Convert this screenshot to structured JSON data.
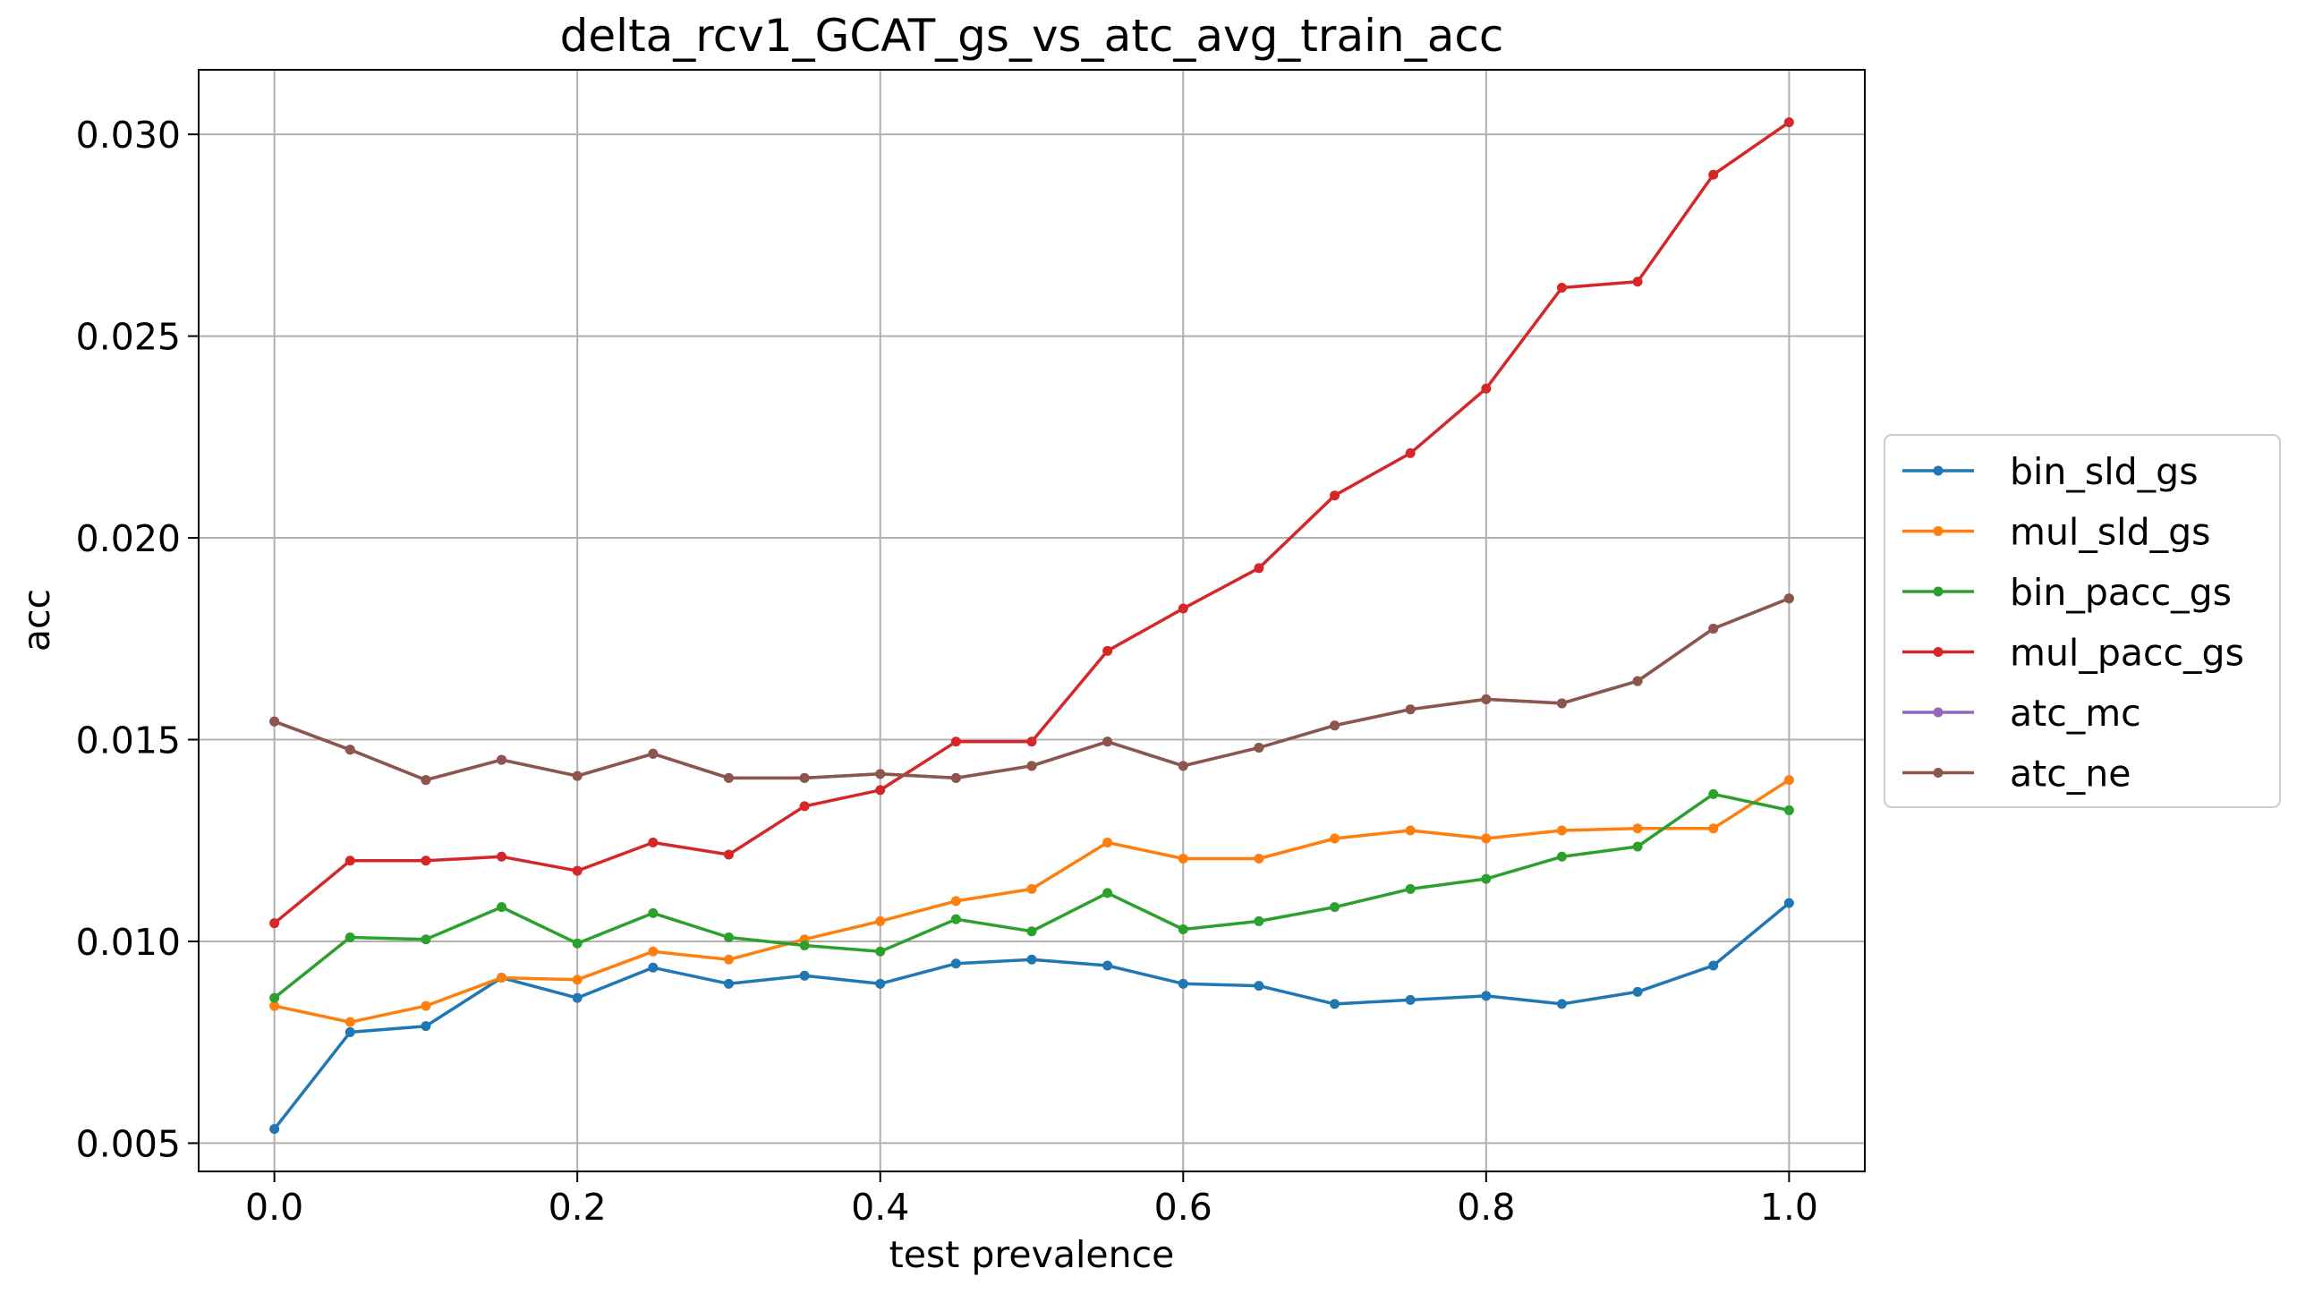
{
  "chart_data": {
    "type": "line",
    "title": "delta_rcv1_GCAT_gs_vs_atc_avg_train_acc",
    "xlabel": "test prevalence",
    "ylabel": "acc",
    "xlim": [
      -0.05,
      1.05
    ],
    "ylim": [
      0.0043,
      0.0316
    ],
    "grid": true,
    "legend_placement": "center right, outside plot",
    "x_ticks": [
      0.0,
      0.2,
      0.4,
      0.6,
      0.8,
      1.0
    ],
    "x_tick_labels": [
      "0.0",
      "0.2",
      "0.4",
      "0.6",
      "0.8",
      "1.0"
    ],
    "y_ticks": [
      0.005,
      0.01,
      0.015,
      0.02,
      0.025,
      0.03
    ],
    "y_tick_labels": [
      "0.005",
      "0.010",
      "0.015",
      "0.020",
      "0.025",
      "0.030"
    ],
    "x": [
      0.0,
      0.05,
      0.1,
      0.15,
      0.2,
      0.25,
      0.3,
      0.35,
      0.4,
      0.45,
      0.5,
      0.55,
      0.6,
      0.65,
      0.7,
      0.75,
      0.8,
      0.85,
      0.9,
      0.95,
      1.0
    ],
    "series": [
      {
        "name": "bin_sld_gs",
        "color": "#1f77b4",
        "values": [
          0.00535,
          0.00775,
          0.0079,
          0.0091,
          0.0086,
          0.00935,
          0.00895,
          0.00915,
          0.00895,
          0.00945,
          0.00955,
          0.0094,
          0.00895,
          0.0089,
          0.00845,
          0.00855,
          0.00865,
          0.00845,
          0.00875,
          0.0094,
          0.01095
        ]
      },
      {
        "name": "mul_sld_gs",
        "color": "#ff7f0e",
        "values": [
          0.0084,
          0.008,
          0.0084,
          0.0091,
          0.00905,
          0.00975,
          0.00955,
          0.01005,
          0.0105,
          0.011,
          0.0113,
          0.01245,
          0.01205,
          0.01205,
          0.01255,
          0.01275,
          0.01255,
          0.01275,
          0.0128,
          0.0128,
          0.014
        ]
      },
      {
        "name": "bin_pacc_gs",
        "color": "#2ca02c",
        "values": [
          0.0086,
          0.0101,
          0.01005,
          0.01085,
          0.00995,
          0.0107,
          0.0101,
          0.0099,
          0.00975,
          0.01055,
          0.01025,
          0.0112,
          0.0103,
          0.0105,
          0.01085,
          0.0113,
          0.01155,
          0.0121,
          0.01235,
          0.01365,
          0.01325
        ]
      },
      {
        "name": "mul_pacc_gs",
        "color": "#d62728",
        "values": [
          0.01045,
          0.012,
          0.012,
          0.0121,
          0.01175,
          0.01245,
          0.01215,
          0.01335,
          0.01375,
          0.01495,
          0.01495,
          0.0172,
          0.01825,
          0.01925,
          0.02105,
          0.0221,
          0.0237,
          0.0262,
          0.02635,
          0.029,
          0.0303
        ]
      },
      {
        "name": "atc_mc",
        "color": "#9467bd",
        "values": [
          0.01545,
          0.01475,
          0.014,
          0.0145,
          0.0141,
          0.01465,
          0.01405,
          0.01405,
          0.01415,
          0.01405,
          0.01435,
          0.01495,
          0.01435,
          0.0148,
          0.01535,
          0.01575,
          0.016,
          0.0159,
          0.01645,
          0.01775,
          0.0185
        ]
      },
      {
        "name": "atc_ne",
        "color": "#8c564b",
        "values": [
          0.01545,
          0.01475,
          0.014,
          0.0145,
          0.0141,
          0.01465,
          0.01405,
          0.01405,
          0.01415,
          0.01405,
          0.01435,
          0.01495,
          0.01435,
          0.0148,
          0.01535,
          0.01575,
          0.016,
          0.0159,
          0.01645,
          0.01775,
          0.0185
        ]
      }
    ]
  }
}
